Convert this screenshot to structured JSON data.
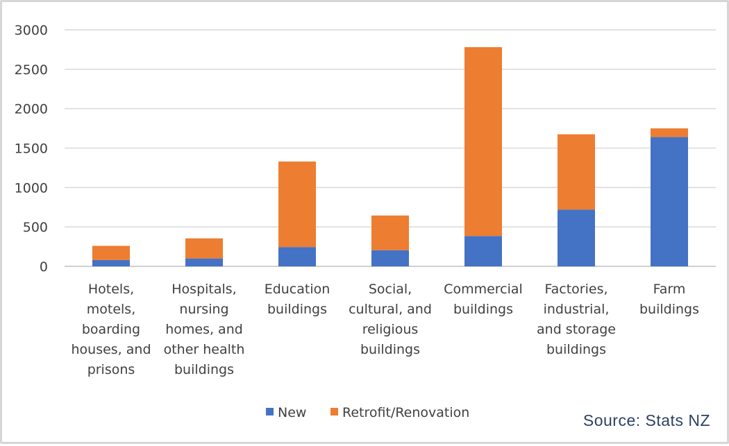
{
  "chart_data": {
    "type": "bar",
    "stacked": true,
    "categories": [
      [
        "Hotels,",
        "motels,",
        "boarding",
        "houses, and",
        "prisons"
      ],
      [
        "Hospitals,",
        "nursing",
        "homes, and",
        "other health",
        "buildings"
      ],
      [
        "Education",
        "buildings"
      ],
      [
        "Social,",
        "cultural, and",
        "religious",
        "buildings"
      ],
      [
        "Commercial",
        "buildings"
      ],
      [
        "Factories,",
        "industrial,",
        "and storage",
        "buildings"
      ],
      [
        "Farm",
        "buildings"
      ]
    ],
    "series": [
      {
        "name": "New",
        "color": "#4472C4",
        "values": [
          80,
          100,
          245,
          205,
          385,
          720,
          1640
        ]
      },
      {
        "name": "Retrofit/Renovation",
        "color": "#ED7D31",
        "values": [
          180,
          255,
          1085,
          440,
          2395,
          955,
          110
        ]
      }
    ],
    "ylim": [
      0,
      3000
    ],
    "yticks": [
      0,
      500,
      1000,
      1500,
      2000,
      2500,
      3000
    ],
    "grid": true,
    "legend_position": "bottom-center"
  },
  "source": "Source: Stats NZ"
}
